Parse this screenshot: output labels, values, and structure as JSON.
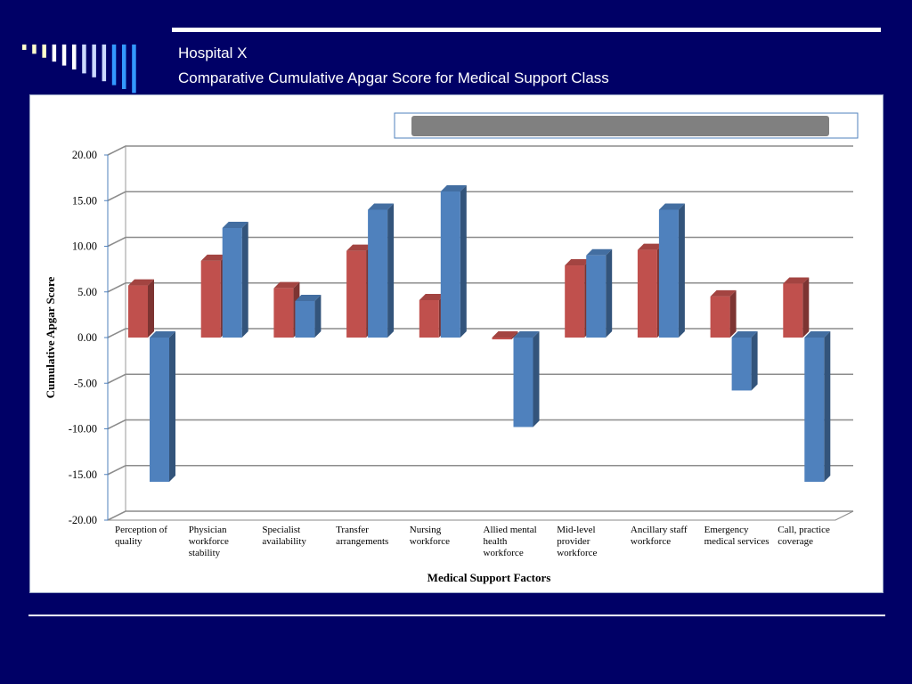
{
  "slide": {
    "title_line1": "Hospital X",
    "title_line2": "Comparative Cumulative Apgar Score for Medical Support Class",
    "colors": {
      "background": "#000066",
      "rule": "#ffffff",
      "deco_bars": [
        "#ffffcc",
        "#ffffcc",
        "#ffffcc",
        "#ffffff",
        "#ffffff",
        "#ffffff",
        "#ccd9ff",
        "#ccd9ff",
        "#ccd9ff",
        "#3399ff",
        "#3399ff",
        "#3399ff"
      ]
    }
  },
  "chart_data": {
    "type": "bar",
    "title": "",
    "xlabel": "Medical Support  Factors",
    "ylabel": "Cumulative Apgar Score",
    "ylim": [
      -20,
      20
    ],
    "yticks": [
      "20.00",
      "15.00",
      "10.00",
      "5.00",
      "0.00",
      "-5.00",
      "-10.00",
      "-15.00",
      "-20.00"
    ],
    "grid": true,
    "three_d": true,
    "legend": "top (entries not legible)",
    "categories": [
      [
        "Perception of",
        "quality"
      ],
      [
        "Physician",
        "workforce",
        "stability"
      ],
      [
        "Specialist",
        "availability"
      ],
      [
        "Transfer",
        "arrangements"
      ],
      [
        "Nursing",
        "workforce"
      ],
      [
        "Allied mental",
        "health",
        "workforce"
      ],
      [
        "Mid-level",
        "provider",
        "workforce"
      ],
      [
        "Ancillary staff",
        "workforce"
      ],
      [
        "Emergency",
        "medical services"
      ],
      [
        "Call, practice",
        "coverage"
      ]
    ],
    "series": [
      {
        "color": "#c0504d",
        "values": [
          5.7,
          8.4,
          5.4,
          9.5,
          4.1,
          -0.2,
          7.9,
          9.6,
          4.5,
          5.9
        ]
      },
      {
        "color": "#4f81bd",
        "values": [
          -15.8,
          12.0,
          4.0,
          14.0,
          16.0,
          -9.8,
          9.0,
          14.0,
          -5.8,
          -15.8
        ]
      }
    ]
  }
}
